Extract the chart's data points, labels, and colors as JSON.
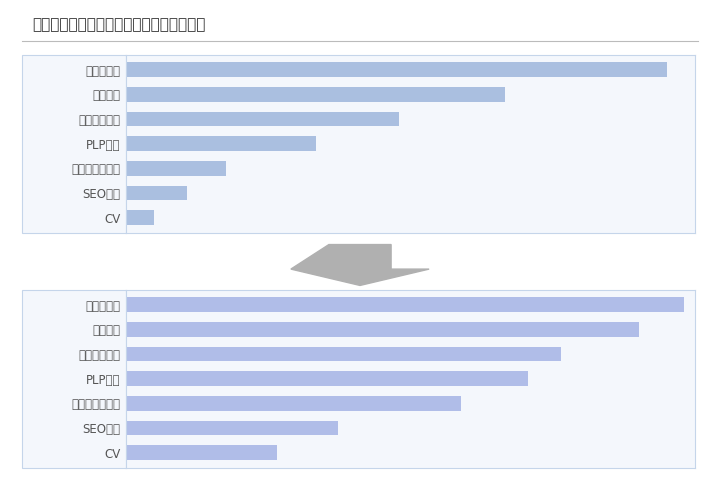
{
  "title": "プロセスでボトルネックになっている部分",
  "title_fontsize": 11,
  "categories": [
    "主要ページ",
    "クロール",
    "インデックス",
    "PLP一致",
    "目標順位を獲得",
    "SEO流入",
    "CV"
  ],
  "values_before": [
    97,
    68,
    49,
    34,
    18,
    11,
    5
  ],
  "values_after": [
    100,
    92,
    78,
    72,
    60,
    38,
    27
  ],
  "bar_color_before": "#aabfe0",
  "bar_color_after": "#b0bde8",
  "box_bg": "#f4f7fc",
  "box_border": "#c5d5ea",
  "arrow_color": "#b0b0b0",
  "text_color": "#555555",
  "label_fontsize": 8.5,
  "fig_bg": "#ffffff",
  "max_value": 100
}
